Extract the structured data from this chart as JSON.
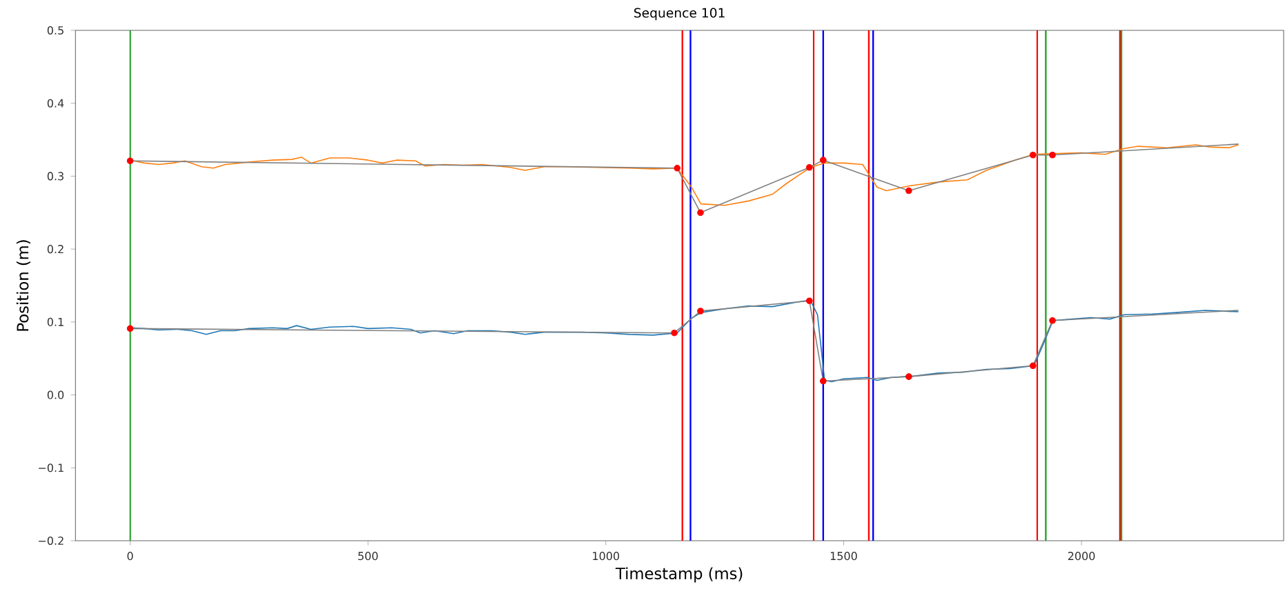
{
  "chart_data": {
    "type": "line",
    "title": "Sequence 101",
    "xlabel": "Timestamp (ms)",
    "ylabel": "Position (m)",
    "xlim": [
      -115,
      2425
    ],
    "ylim": [
      -0.2,
      0.5
    ],
    "xticks": [
      0,
      500,
      1000,
      1500,
      2000
    ],
    "yticks": [
      {
        "value": -0.2,
        "label": "−0.2"
      },
      {
        "value": -0.1,
        "label": "−0.1"
      },
      {
        "value": 0,
        "label": "0.0"
      },
      0.1,
      0.2,
      0.3,
      0.4,
      0.5
    ],
    "grid": false,
    "legend": false,
    "marker": "none",
    "line_style": "solid",
    "series": [
      {
        "color": "#ff7f0e",
        "x": [
          0,
          30,
          60,
          90,
          115,
          150,
          175,
          200,
          230,
          260,
          300,
          340,
          360,
          380,
          420,
          460,
          500,
          530,
          560,
          600,
          620,
          660,
          700,
          740,
          800,
          830,
          870,
          920,
          980,
          1050,
          1100,
          1150,
          1180,
          1200,
          1250,
          1300,
          1350,
          1380,
          1430,
          1460,
          1500,
          1540,
          1570,
          1590,
          1640,
          1700,
          1760,
          1800,
          1860,
          1900,
          1950,
          2000,
          2050,
          2090,
          2120,
          2180,
          2240,
          2270,
          2310,
          2330
        ],
        "values": [
          0.322,
          0.318,
          0.316,
          0.318,
          0.321,
          0.313,
          0.311,
          0.316,
          0.318,
          0.32,
          0.322,
          0.323,
          0.326,
          0.318,
          0.325,
          0.325,
          0.322,
          0.318,
          0.322,
          0.321,
          0.314,
          0.316,
          0.315,
          0.316,
          0.312,
          0.308,
          0.313,
          0.313,
          0.312,
          0.311,
          0.31,
          0.311,
          0.285,
          0.262,
          0.26,
          0.266,
          0.275,
          0.29,
          0.312,
          0.318,
          0.318,
          0.316,
          0.285,
          0.28,
          0.287,
          0.292,
          0.295,
          0.308,
          0.322,
          0.33,
          0.331,
          0.332,
          0.33,
          0.338,
          0.341,
          0.339,
          0.343,
          0.34,
          0.339,
          0.343
        ]
      },
      {
        "color": "#1f77b4",
        "x": [
          0,
          30,
          60,
          100,
          130,
          160,
          190,
          220,
          250,
          300,
          330,
          350,
          380,
          420,
          470,
          500,
          550,
          590,
          610,
          640,
          680,
          710,
          760,
          800,
          830,
          870,
          950,
          1000,
          1050,
          1100,
          1150,
          1180,
          1200,
          1250,
          1300,
          1350,
          1400,
          1430,
          1445,
          1460,
          1475,
          1500,
          1550,
          1570,
          1600,
          1650,
          1700,
          1750,
          1800,
          1850,
          1900,
          1920,
          1940,
          1980,
          2020,
          2060,
          2090,
          2150,
          2200,
          2260,
          2330
        ],
        "values": [
          0.092,
          0.091,
          0.089,
          0.09,
          0.088,
          0.083,
          0.088,
          0.088,
          0.091,
          0.092,
          0.091,
          0.095,
          0.09,
          0.093,
          0.094,
          0.091,
          0.092,
          0.09,
          0.085,
          0.088,
          0.084,
          0.088,
          0.088,
          0.086,
          0.083,
          0.086,
          0.086,
          0.085,
          0.083,
          0.082,
          0.085,
          0.105,
          0.113,
          0.118,
          0.122,
          0.121,
          0.127,
          0.13,
          0.11,
          0.02,
          0.018,
          0.022,
          0.024,
          0.02,
          0.024,
          0.026,
          0.03,
          0.031,
          0.035,
          0.036,
          0.04,
          0.07,
          0.102,
          0.104,
          0.106,
          0.104,
          0.11,
          0.111,
          0.113,
          0.116,
          0.114
        ]
      },
      {
        "color": "#808080",
        "x": [
          0,
          1150,
          1199,
          1428,
          1457,
          1637,
          1898,
          1939,
          2330
        ],
        "values": [
          0.321,
          0.311,
          0.25,
          0.312,
          0.322,
          0.28,
          0.329,
          0.329,
          0.344
        ]
      },
      {
        "color": "#808080",
        "x": [
          0,
          1144,
          1199,
          1428,
          1457,
          1637,
          1898,
          1939,
          2330
        ],
        "values": [
          0.091,
          0.085,
          0.115,
          0.129,
          0.019,
          0.025,
          0.04,
          0.102,
          0.116
        ]
      },
      {
        "type": "scatter",
        "marker": "circle",
        "color": "#ff0000",
        "x": [
          0,
          1150,
          1199,
          1428,
          1457,
          1637,
          1898,
          1939,
          0,
          1144,
          1199,
          1428,
          1457,
          1637,
          1898,
          1939
        ],
        "values": [
          0.321,
          0.311,
          0.25,
          0.312,
          0.322,
          0.28,
          0.329,
          0.329,
          0.091,
          0.085,
          0.115,
          0.129,
          0.019,
          0.025,
          0.04,
          0.102
        ]
      }
    ],
    "ref_lines": [
      {
        "axis": "x",
        "value": 0,
        "color": "#2ca02c"
      },
      {
        "axis": "x",
        "value": 1161,
        "color": "#ff0000"
      },
      {
        "axis": "x",
        "value": 1178,
        "color": "#0000ff"
      },
      {
        "axis": "x",
        "value": 1437,
        "color": "#ff0000"
      },
      {
        "axis": "x",
        "value": 1457,
        "color": "#0000ff"
      },
      {
        "axis": "x",
        "value": 1553,
        "color": "#ff0000"
      },
      {
        "axis": "x",
        "value": 1562,
        "color": "#0000ff"
      },
      {
        "axis": "x",
        "value": 1907,
        "color": "#ff0000"
      },
      {
        "axis": "x",
        "value": 1925,
        "color": "#2ca02c"
      },
      {
        "axis": "x",
        "value": 2081,
        "color": "#ff0000"
      },
      {
        "axis": "x",
        "value": 2084,
        "color": "#2ca02c"
      }
    ]
  }
}
